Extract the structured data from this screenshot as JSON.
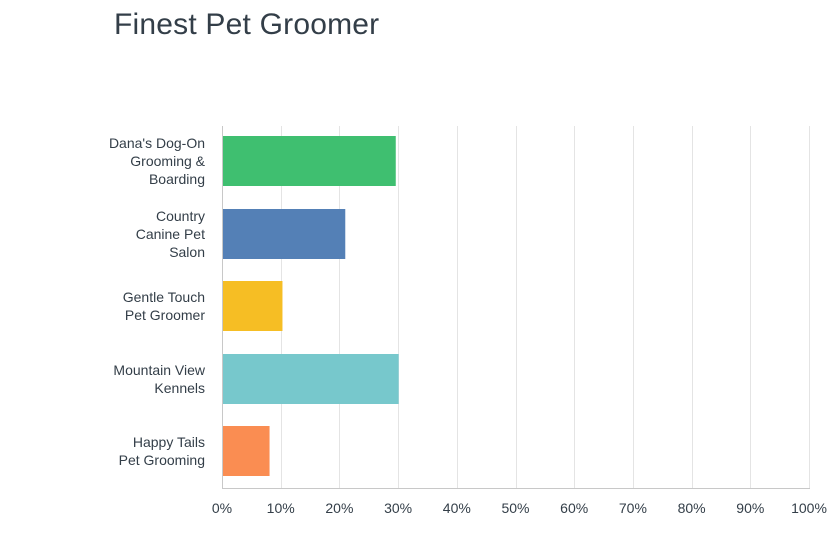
{
  "chart_data": {
    "type": "bar",
    "orientation": "horizontal",
    "title": "Finest Pet Groomer",
    "categories": [
      [
        "Dana's Dog-On",
        "Grooming &",
        "Boarding"
      ],
      [
        "Country",
        "Canine Pet",
        "Salon"
      ],
      [
        "Gentle Touch",
        "Pet Groomer"
      ],
      [
        "Mountain View",
        "Kennels"
      ],
      [
        "Happy Tails",
        "Pet Grooming"
      ]
    ],
    "values": [
      29.6,
      21.0,
      10.3,
      30.1,
      8.1
    ],
    "colors": [
      "#3fbf70",
      "#5480b6",
      "#f6be24",
      "#77c8cc",
      "#fa8d52"
    ],
    "xlim": [
      0,
      100
    ],
    "xticks": [
      "0%",
      "10%",
      "20%",
      "30%",
      "40%",
      "50%",
      "60%",
      "70%",
      "80%",
      "90%",
      "100%"
    ],
    "grid": true,
    "xlabel": "",
    "ylabel": ""
  }
}
